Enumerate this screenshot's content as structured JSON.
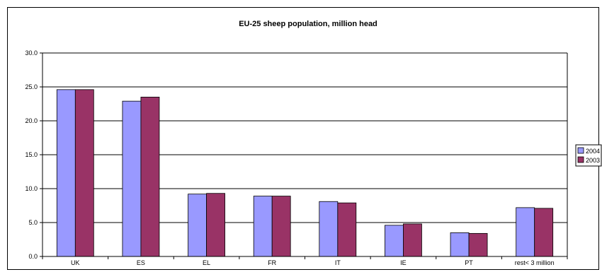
{
  "chart_data": {
    "type": "bar",
    "title": "EU-25 sheep population, million head",
    "xlabel": "",
    "ylabel": "",
    "categories": [
      "UK",
      "ES",
      "EL",
      "FR",
      "IT",
      "IE",
      "PT",
      "rest< 3 million"
    ],
    "series": [
      {
        "name": "2004",
        "color": "#9999ff",
        "values": [
          24.6,
          22.9,
          9.2,
          8.9,
          8.1,
          4.6,
          3.5,
          7.2
        ]
      },
      {
        "name": "2003",
        "color": "#993366",
        "values": [
          24.6,
          23.5,
          9.3,
          8.9,
          7.9,
          4.8,
          3.4,
          7.1
        ]
      }
    ],
    "ylim": [
      0,
      30
    ],
    "yticks": [
      "0.0",
      "5.0",
      "10.0",
      "15.0",
      "20.0",
      "25.0",
      "30.0"
    ],
    "grid": true,
    "legend_position": "right"
  }
}
